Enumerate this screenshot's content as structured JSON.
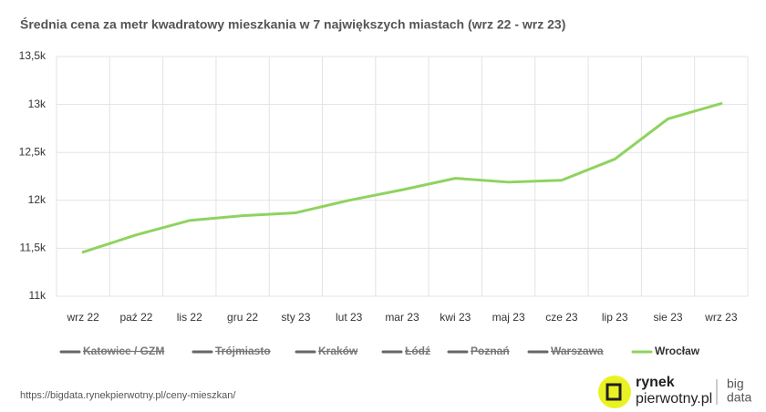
{
  "chart_data": {
    "type": "line",
    "title": "Średnia cena za metr kwadratowy mieszkania w 7 największych miastach (wrz 22 - wrz 23)",
    "categories": [
      "wrz 22",
      "paź 22",
      "lis 22",
      "gru 22",
      "sty 23",
      "lut 23",
      "mar 23",
      "kwi 23",
      "maj 23",
      "cze 23",
      "lip 23",
      "sie 23",
      "wrz 23"
    ],
    "series": [
      {
        "name": "Katowice / GZM",
        "color": "#666666",
        "hidden": true,
        "values": [
          null,
          null,
          null,
          null,
          null,
          null,
          null,
          null,
          null,
          null,
          null,
          null,
          null
        ]
      },
      {
        "name": "Trójmiasto",
        "color": "#666666",
        "hidden": true,
        "values": [
          null,
          null,
          null,
          null,
          null,
          null,
          null,
          null,
          null,
          null,
          null,
          null,
          null
        ]
      },
      {
        "name": "Kraków",
        "color": "#666666",
        "hidden": true,
        "values": [
          null,
          null,
          null,
          null,
          null,
          null,
          null,
          null,
          null,
          null,
          null,
          null,
          null
        ]
      },
      {
        "name": "Łódź",
        "color": "#666666",
        "hidden": true,
        "values": [
          null,
          null,
          null,
          null,
          null,
          null,
          null,
          null,
          null,
          null,
          null,
          null,
          null
        ]
      },
      {
        "name": "Poznań",
        "color": "#666666",
        "hidden": true,
        "values": [
          null,
          null,
          null,
          null,
          null,
          null,
          null,
          null,
          null,
          null,
          null,
          null,
          null
        ]
      },
      {
        "name": "Warszawa",
        "color": "#666666",
        "hidden": true,
        "values": [
          null,
          null,
          null,
          null,
          null,
          null,
          null,
          null,
          null,
          null,
          null,
          null,
          null
        ]
      },
      {
        "name": "Wrocław",
        "color": "#8fd35f",
        "hidden": false,
        "values": [
          11460,
          11640,
          11790,
          11840,
          11870,
          12000,
          12110,
          12230,
          12190,
          12210,
          12430,
          12850,
          13010
        ]
      }
    ],
    "ylim": [
      11000,
      13500
    ],
    "yticks": [
      {
        "value": 11000,
        "label": "11k"
      },
      {
        "value": 11500,
        "label": "11,5k"
      },
      {
        "value": 12000,
        "label": "12k"
      },
      {
        "value": 12500,
        "label": "12,5k"
      },
      {
        "value": 13000,
        "label": "13k"
      },
      {
        "value": 13500,
        "label": "13,5k"
      }
    ],
    "grid": true
  },
  "footer": {
    "url": "https://bigdata.rynekpierwotny.pl/ceny-mieszkan/"
  },
  "logo": {
    "line1": "rynek",
    "line2": "pierwotny.pl",
    "tag1": "big",
    "tag2": "data"
  }
}
